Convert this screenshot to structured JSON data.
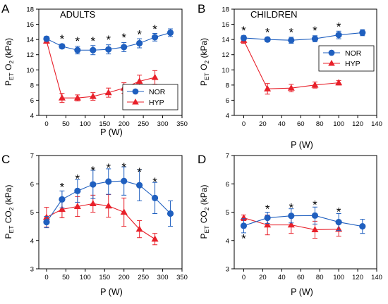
{
  "colors": {
    "NOR": "#1f5fbf",
    "HYP": "#e8202a"
  },
  "chart_data": [
    {
      "type": "line",
      "panel": "A",
      "label": "ADULTS",
      "xlabel": "P (W)",
      "ylabel_parts": [
        "P",
        "ET",
        " O",
        "2",
        " (kPa)"
      ],
      "xlim": [
        -20,
        350
      ],
      "ylim": [
        4,
        18
      ],
      "xticks": [
        0,
        50,
        100,
        150,
        200,
        250,
        300,
        350
      ],
      "yticks": [
        4,
        6,
        8,
        10,
        12,
        14,
        16,
        18
      ],
      "series": [
        {
          "name": "NOR",
          "x": [
            0,
            40,
            80,
            120,
            160,
            200,
            240,
            280,
            320
          ],
          "y": [
            14.1,
            13.1,
            12.6,
            12.6,
            12.7,
            13.0,
            13.5,
            14.3,
            14.9
          ],
          "err": [
            0.3,
            0.3,
            0.5,
            0.6,
            0.6,
            0.6,
            0.6,
            0.5,
            0.5
          ]
        },
        {
          "name": "HYP",
          "x": [
            0,
            40,
            80,
            120,
            160,
            200,
            240,
            280
          ],
          "y": [
            13.8,
            6.3,
            6.3,
            6.5,
            7.0,
            7.6,
            8.5,
            9.0
          ],
          "err": [
            0.3,
            0.6,
            0.4,
            0.5,
            0.6,
            0.7,
            0.8,
            0.9
          ]
        }
      ],
      "stars": [
        {
          "x": 40,
          "y": 14.2
        },
        {
          "x": 80,
          "y": 13.9
        },
        {
          "x": 120,
          "y": 13.9
        },
        {
          "x": 160,
          "y": 14.1
        },
        {
          "x": 200,
          "y": 14.4
        },
        {
          "x": 240,
          "y": 14.8
        },
        {
          "x": 280,
          "y": 15.5
        }
      ],
      "legend": {
        "position": "lower-right",
        "entries": [
          "NOR",
          "HYP"
        ]
      }
    },
    {
      "type": "line",
      "panel": "B",
      "label": "CHILDREN",
      "xlabel": "P (W)",
      "ylabel_parts": [
        "P",
        "ET",
        " O",
        "2",
        " (kPa)"
      ],
      "xlim": [
        -10,
        140
      ],
      "ylim": [
        4,
        18
      ],
      "xticks": [
        0,
        20,
        40,
        60,
        80,
        100,
        120,
        140
      ],
      "yticks": [
        4,
        6,
        8,
        10,
        12,
        14,
        16,
        18
      ],
      "series": [
        {
          "name": "NOR",
          "x": [
            0,
            25,
            50,
            75,
            100,
            125
          ],
          "y": [
            14.2,
            14.0,
            13.9,
            14.1,
            14.6,
            14.9
          ],
          "err": [
            0.3,
            0.3,
            0.4,
            0.4,
            0.5,
            0.4
          ]
        },
        {
          "name": "HYP",
          "x": [
            0,
            25,
            50,
            75,
            100
          ],
          "y": [
            13.9,
            7.5,
            7.6,
            8.0,
            8.3
          ],
          "err": [
            0.4,
            0.7,
            0.5,
            0.4,
            0.3
          ]
        }
      ],
      "stars": [
        {
          "x": 0,
          "y": 15.3
        },
        {
          "x": 25,
          "y": 15.1
        },
        {
          "x": 50,
          "y": 15.1
        },
        {
          "x": 75,
          "y": 15.3
        },
        {
          "x": 100,
          "y": 15.8
        }
      ],
      "legend": {
        "position": "right",
        "entries": [
          "NOR",
          "HYP"
        ]
      }
    },
    {
      "type": "line",
      "panel": "C",
      "label": "",
      "xlabel": "P (W)",
      "ylabel_parts": [
        "P",
        "ET",
        " CO",
        "2",
        " (kPa)"
      ],
      "xlim": [
        -20,
        350
      ],
      "ylim": [
        3,
        7
      ],
      "xticks": [
        0,
        50,
        100,
        150,
        200,
        250,
        300,
        350
      ],
      "yticks": [
        3,
        4,
        5,
        6,
        7
      ],
      "series": [
        {
          "name": "NOR",
          "x": [
            0,
            40,
            80,
            120,
            160,
            200,
            240,
            280,
            320
          ],
          "y": [
            4.65,
            5.45,
            5.75,
            5.98,
            6.08,
            6.1,
            5.95,
            5.5,
            4.95
          ],
          "err": [
            0.2,
            0.3,
            0.4,
            0.5,
            0.45,
            0.5,
            0.55,
            0.55,
            0.45
          ]
        },
        {
          "name": "HYP",
          "x": [
            0,
            40,
            80,
            120,
            160,
            200,
            240,
            280
          ],
          "y": [
            4.82,
            5.1,
            5.2,
            5.3,
            5.22,
            5.0,
            4.4,
            4.05
          ],
          "err": [
            0.35,
            0.3,
            0.35,
            0.3,
            0.4,
            0.5,
            0.3,
            0.2
          ]
        }
      ],
      "stars": [
        {
          "x": 40,
          "y": 5.92
        },
        {
          "x": 80,
          "y": 6.22
        },
        {
          "x": 120,
          "y": 6.5
        },
        {
          "x": 160,
          "y": 6.6
        },
        {
          "x": 200,
          "y": 6.63
        },
        {
          "x": 240,
          "y": 6.45
        },
        {
          "x": 280,
          "y": 6.1
        }
      ],
      "legend": null
    },
    {
      "type": "line",
      "panel": "D",
      "label": "",
      "xlabel": "P (W)",
      "ylabel_parts": [
        "P",
        "ET",
        " CO",
        "2",
        " (kPa)"
      ],
      "xlim": [
        -10,
        140
      ],
      "ylim": [
        3,
        7
      ],
      "xticks": [
        0,
        20,
        40,
        60,
        80,
        100,
        120,
        140
      ],
      "yticks": [
        3,
        4,
        5,
        6,
        7
      ],
      "series": [
        {
          "name": "NOR",
          "x": [
            0,
            25,
            50,
            75,
            100,
            125
          ],
          "y": [
            4.52,
            4.8,
            4.87,
            4.88,
            4.65,
            4.5
          ],
          "err": [
            0.25,
            0.2,
            0.25,
            0.3,
            0.3,
            0.25
          ]
        },
        {
          "name": "HYP",
          "x": [
            0,
            25,
            50,
            75,
            100
          ],
          "y": [
            4.8,
            4.55,
            4.55,
            4.38,
            4.4
          ],
          "err": [
            0.1,
            0.35,
            0.3,
            0.3,
            0.25
          ]
        }
      ],
      "stars": [
        {
          "x": 0,
          "y": 4.1
        },
        {
          "x": 25,
          "y": 5.15
        },
        {
          "x": 50,
          "y": 5.2
        },
        {
          "x": 75,
          "y": 5.3
        },
        {
          "x": 100,
          "y": 5.05
        }
      ],
      "legend": null
    }
  ]
}
